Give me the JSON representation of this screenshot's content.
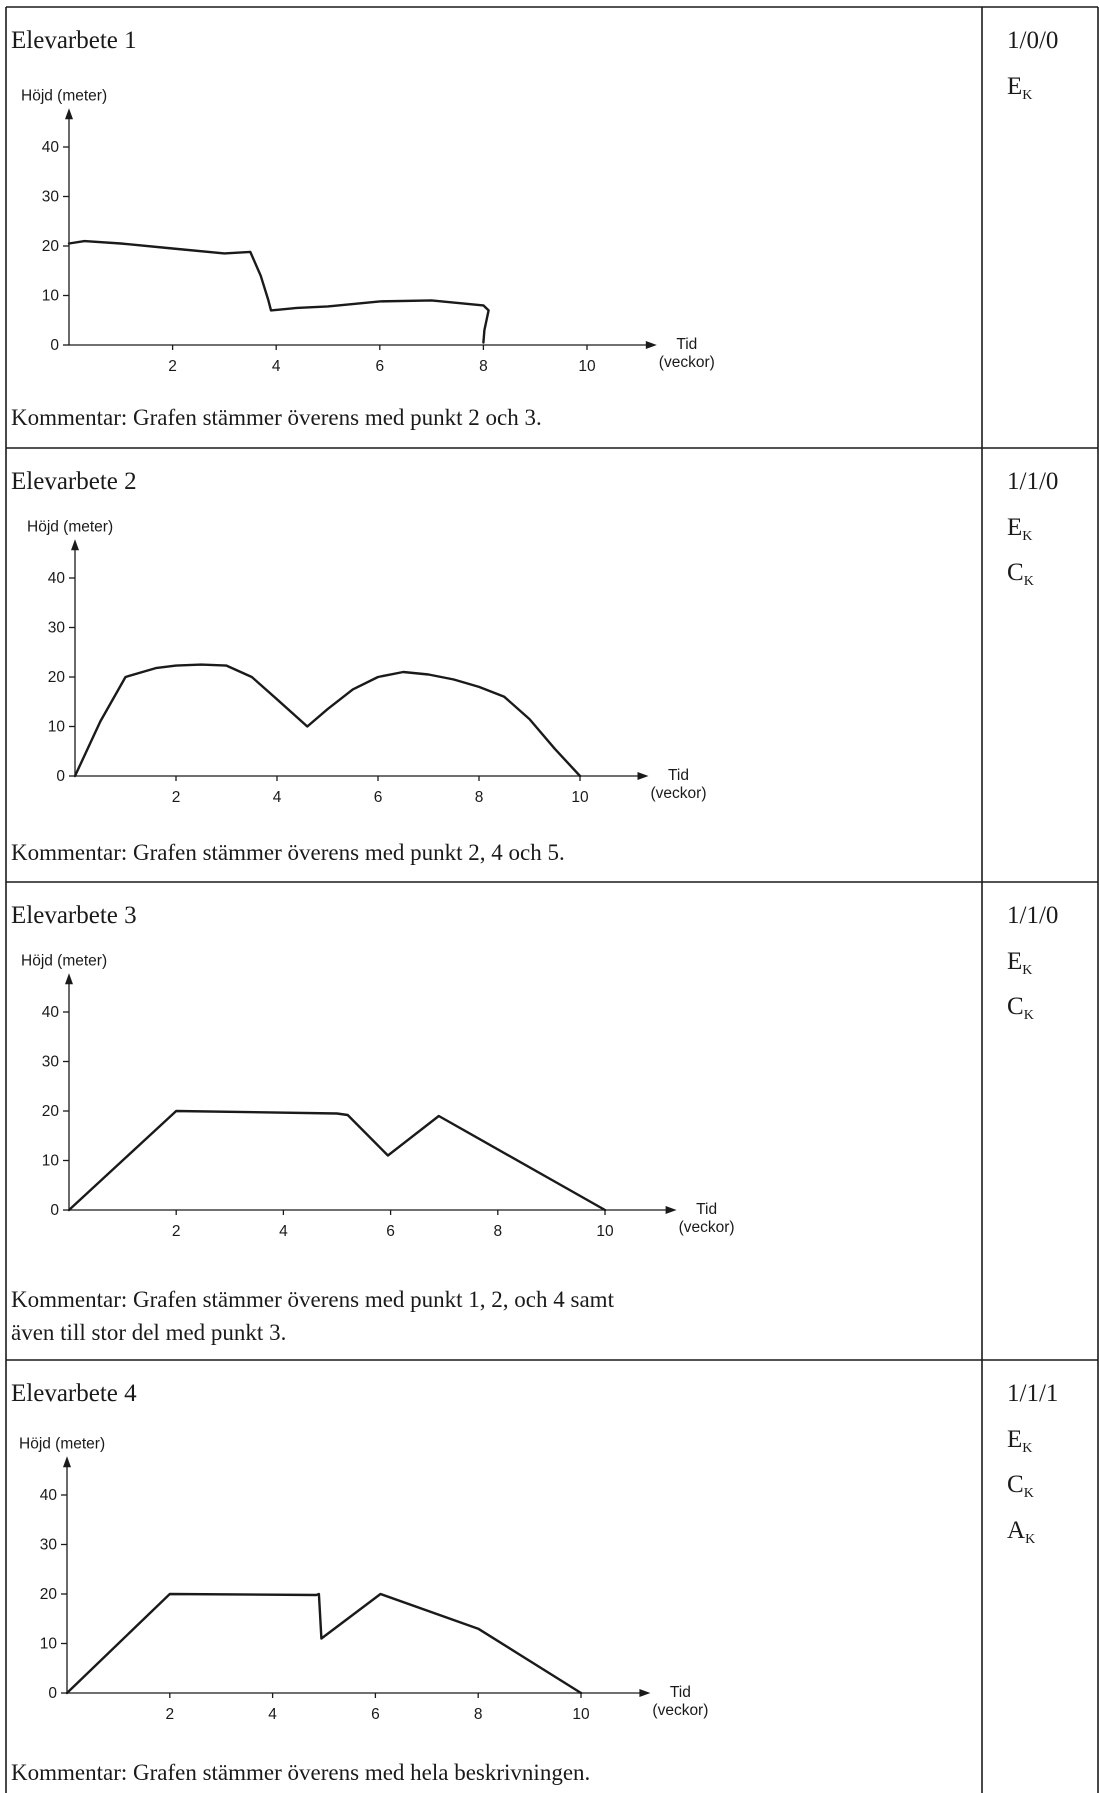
{
  "rows": [
    {
      "title": "Elevarbete 1",
      "comment": [
        "Kommentar: Grafen stämmer överens med punkt 2 och 3."
      ],
      "score": "1/0/0",
      "marks": [
        {
          "letter": "E",
          "sub": "K"
        }
      ]
    },
    {
      "title": "Elevarbete 2",
      "comment": [
        "Kommentar: Grafen stämmer överens med punkt 2, 4 och 5."
      ],
      "score": "1/1/0",
      "marks": [
        {
          "letter": "E",
          "sub": "K"
        },
        {
          "letter": "C",
          "sub": "K"
        }
      ]
    },
    {
      "title": "Elevarbete 3",
      "comment": [
        "Kommentar: Grafen stämmer överens med punkt 1, 2, och 4 samt",
        "även till stor del med punkt 3."
      ],
      "score": "1/1/0",
      "marks": [
        {
          "letter": "E",
          "sub": "K"
        },
        {
          "letter": "C",
          "sub": "K"
        }
      ]
    },
    {
      "title": "Elevarbete 4",
      "comment": [
        "Kommentar: Grafen stämmer överens med hela beskrivningen."
      ],
      "score": "1/1/1",
      "marks": [
        {
          "letter": "E",
          "sub": "K"
        },
        {
          "letter": "C",
          "sub": "K"
        },
        {
          "letter": "A",
          "sub": "K"
        }
      ]
    }
  ],
  "chart_data": [
    {
      "type": "line",
      "ylabel": "Höjd (meter)",
      "xlabel": [
        "Tid",
        "(veckor)"
      ],
      "x_ticks": [
        "2",
        "4",
        "6",
        "8",
        "10"
      ],
      "y_ticks": [
        "0",
        "10",
        "20",
        "30",
        "40"
      ],
      "xlim": [
        0,
        11
      ],
      "ylim": [
        0,
        45
      ],
      "series": [
        {
          "x": [
            0,
            0.3,
            1,
            2,
            3,
            3.5,
            3.7,
            3.85,
            3.9,
            4.4,
            5,
            6,
            7,
            8,
            8.1,
            8.02,
            8.0
          ],
          "y": [
            20.5,
            21,
            20.5,
            19.5,
            18.5,
            18.8,
            14,
            9,
            7,
            7.5,
            7.8,
            8.8,
            9,
            8,
            7,
            3,
            0.5
          ]
        }
      ]
    },
    {
      "type": "line",
      "ylabel": "Höjd (meter)",
      "xlabel": [
        "Tid",
        "(veckor)"
      ],
      "x_ticks": [
        "2",
        "4",
        "6",
        "8",
        "10"
      ],
      "y_ticks": [
        "0",
        "10",
        "20",
        "30",
        "40"
      ],
      "xlim": [
        0,
        11
      ],
      "ylim": [
        0,
        45
      ],
      "series": [
        {
          "x": [
            0,
            0.5,
            1,
            1.6,
            2,
            2.5,
            3,
            3.5,
            4,
            4.6,
            5,
            5.5,
            6,
            6.5,
            7,
            7.5,
            8,
            8.5,
            9,
            9.5,
            10
          ],
          "y": [
            0,
            11,
            20,
            21.8,
            22.3,
            22.5,
            22.3,
            20,
            15.5,
            10,
            13.5,
            17.5,
            20,
            21,
            20.5,
            19.5,
            18,
            16,
            11.5,
            5.5,
            0
          ]
        }
      ]
    },
    {
      "type": "line",
      "ylabel": "Höjd (meter)",
      "xlabel": [
        "Tid",
        "(veckor)"
      ],
      "x_ticks": [
        "2",
        "4",
        "6",
        "8",
        "10"
      ],
      "y_ticks": [
        "0",
        "10",
        "20",
        "30",
        "40"
      ],
      "xlim": [
        0,
        11
      ],
      "ylim": [
        0,
        45
      ],
      "series": [
        {
          "x": [
            0,
            2,
            5,
            5.2,
            5.95,
            6.9,
            10
          ],
          "y": [
            0,
            20,
            19.5,
            19.2,
            11,
            19,
            0
          ]
        }
      ]
    },
    {
      "type": "line",
      "ylabel": "Höjd (meter)",
      "xlabel": [
        "Tid",
        "(veckor)"
      ],
      "x_ticks": [
        "2",
        "4",
        "6",
        "8",
        "10"
      ],
      "y_ticks": [
        "0",
        "10",
        "20",
        "30",
        "40"
      ],
      "xlim": [
        0,
        11
      ],
      "ylim": [
        0,
        45
      ],
      "series": [
        {
          "x": [
            0,
            1,
            2,
            4.85,
            4.9,
            4.95,
            6.1,
            8,
            10
          ],
          "y": [
            0,
            10,
            20,
            19.8,
            20,
            11,
            20,
            13,
            0
          ]
        }
      ]
    }
  ]
}
